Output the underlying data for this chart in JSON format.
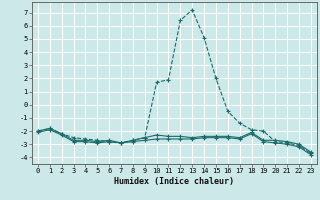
{
  "xlabel": "Humidex (Indice chaleur)",
  "bg_color": "#cce8e8",
  "grid_color": "#ffffff",
  "line_color": "#1a6b6b",
  "xlim": [
    -0.5,
    23.5
  ],
  "ylim": [
    -4.5,
    7.8
  ],
  "xticks": [
    0,
    1,
    2,
    3,
    4,
    5,
    6,
    7,
    8,
    9,
    10,
    11,
    12,
    13,
    14,
    15,
    16,
    17,
    18,
    19,
    20,
    21,
    22,
    23
  ],
  "yticks": [
    -4,
    -3,
    -2,
    -1,
    0,
    1,
    2,
    3,
    4,
    5,
    6,
    7
  ],
  "series": [
    {
      "x": [
        0,
        1,
        2,
        3,
        4,
        5,
        6,
        7,
        8,
        9,
        10,
        11,
        12,
        13,
        14,
        15,
        16,
        17,
        18,
        19,
        20,
        21,
        22,
        23
      ],
      "y": [
        -2.0,
        -1.8,
        -2.2,
        -2.5,
        -2.6,
        -2.7,
        -2.8,
        -2.9,
        -2.7,
        -2.5,
        1.7,
        1.9,
        6.4,
        7.2,
        5.1,
        2.0,
        -0.5,
        -1.4,
        -1.9,
        -2.0,
        -2.8,
        -2.9,
        -3.1,
        -3.7
      ],
      "linestyle": "--"
    },
    {
      "x": [
        0,
        1,
        2,
        3,
        4,
        5,
        6,
        7,
        8,
        9,
        10,
        11,
        12,
        13,
        14,
        15,
        16,
        17,
        18,
        19,
        20,
        21,
        22,
        23
      ],
      "y": [
        -2.1,
        -1.9,
        -2.3,
        -2.8,
        -2.8,
        -2.9,
        -2.8,
        -2.9,
        -2.8,
        -2.7,
        -2.6,
        -2.6,
        -2.6,
        -2.6,
        -2.5,
        -2.5,
        -2.5,
        -2.6,
        -2.2,
        -2.8,
        -2.9,
        -3.0,
        -3.2,
        -3.8
      ],
      "linestyle": "-"
    },
    {
      "x": [
        0,
        1,
        2,
        3,
        4,
        5,
        6,
        7,
        8,
        9,
        10,
        11,
        12,
        13,
        14,
        15,
        16,
        17,
        18,
        19,
        20,
        21,
        22,
        23
      ],
      "y": [
        -2.0,
        -1.8,
        -2.2,
        -2.7,
        -2.7,
        -2.8,
        -2.7,
        -2.9,
        -2.7,
        -2.5,
        -2.3,
        -2.4,
        -2.4,
        -2.5,
        -2.4,
        -2.4,
        -2.4,
        -2.5,
        -2.1,
        -2.7,
        -2.7,
        -2.8,
        -3.0,
        -3.6
      ],
      "linestyle": "-"
    }
  ]
}
